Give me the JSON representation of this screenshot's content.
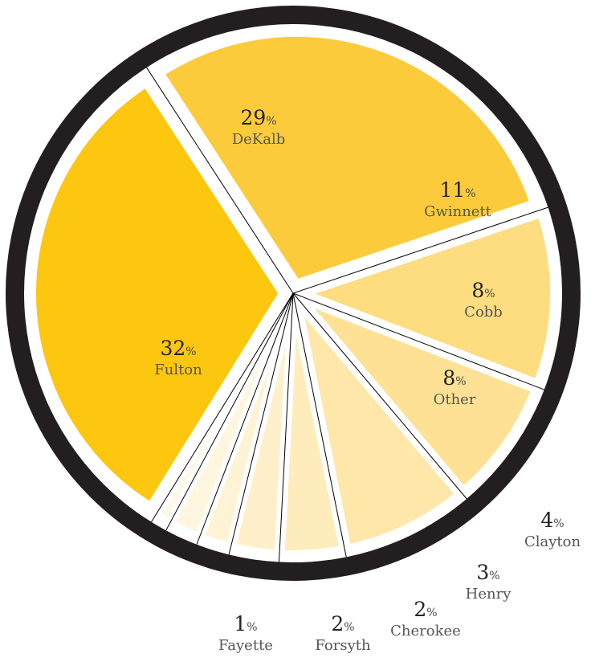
{
  "chart_data": {
    "type": "pie",
    "slices": [
      {
        "label": "DeKalb",
        "pct": "29",
        "value": 29,
        "color": "#fccb3c"
      },
      {
        "label": "Gwinnett",
        "pct": "11",
        "value": 11,
        "color": "#fedc80"
      },
      {
        "label": "Cobb",
        "pct": "8",
        "value": 8,
        "color": "#fee195"
      },
      {
        "label": "Other",
        "pct": "8",
        "value": 8,
        "color": "#fee7a9"
      },
      {
        "label": "Clayton",
        "pct": "4",
        "value": 4,
        "color": "#feecbc"
      },
      {
        "label": "Henry",
        "pct": "3",
        "value": 3,
        "color": "#fff0cb"
      },
      {
        "label": "Cherokee",
        "pct": "2",
        "value": 2,
        "color": "#fff3d6"
      },
      {
        "label": "Forsyth",
        "pct": "2",
        "value": 2,
        "color": "#fff6e0"
      },
      {
        "label": "Fayette",
        "pct": "1",
        "value": 1,
        "color": "#fff9ea"
      },
      {
        "label": "Fulton",
        "pct": "32",
        "value": 32,
        "color": "#fdc60f"
      }
    ],
    "percent_sign": "%",
    "ring_color": "#231f20"
  }
}
